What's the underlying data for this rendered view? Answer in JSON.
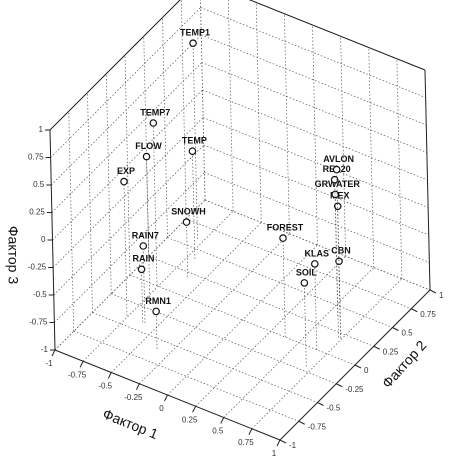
{
  "chart_data": {
    "type": "scatter3d",
    "xlabel": "Фактор 1",
    "ylabel": "Фактор 2",
    "zlabel": "Фактор 3",
    "labels": [
      "TEMP1",
      "TEMP7",
      "FLOW",
      "TEMP",
      "EXP",
      "SNOWH",
      "RAIN7",
      "RAIN",
      "RMN1",
      "FOREST",
      "KLAS",
      "SOIL",
      "CBN",
      "MEX",
      "GRWATER",
      "REL20",
      "AVLON"
    ],
    "x": [
      -0.8,
      -0.76,
      -0.69,
      -0.69,
      -0.76,
      -0.62,
      -0.6,
      -0.62,
      -0.36,
      0.38,
      0.66,
      0.7,
      0.74,
      0.74,
      0.72,
      0.58,
      0.6
    ],
    "y": [
      0.6,
      0,
      -0.2,
      0.4,
      -0.4,
      0.2,
      -0.4,
      -0.4,
      -0.6,
      0,
      0,
      -0.2,
      0.2,
      0.2,
      0.2,
      0.4,
      0.4
    ],
    "z": [
      0.78,
      0.48,
      0.34,
      -0.02,
      0.22,
      -0.5,
      -0.3,
      -0.52,
      -0.66,
      -0.1,
      -0.22,
      -0.24,
      -0.3,
      0.2,
      0.3,
      0.24,
      0.34
    ],
    "xlim": [
      -1,
      1
    ],
    "ylim": [
      -1,
      1
    ],
    "zlim": [
      -1,
      1
    ],
    "xticks": [
      -1,
      -0.75,
      -0.5,
      -0.25,
      0,
      0.25,
      0.5,
      0.75,
      1
    ],
    "yticks": [
      -1,
      -0.75,
      -0.5,
      -0.25,
      0,
      0.25,
      0.5,
      0.75,
      1
    ],
    "zticks": [
      -1,
      -0.75,
      -0.5,
      -0.25,
      0,
      0.25,
      0.5,
      0.75,
      1
    ],
    "grid": true
  }
}
